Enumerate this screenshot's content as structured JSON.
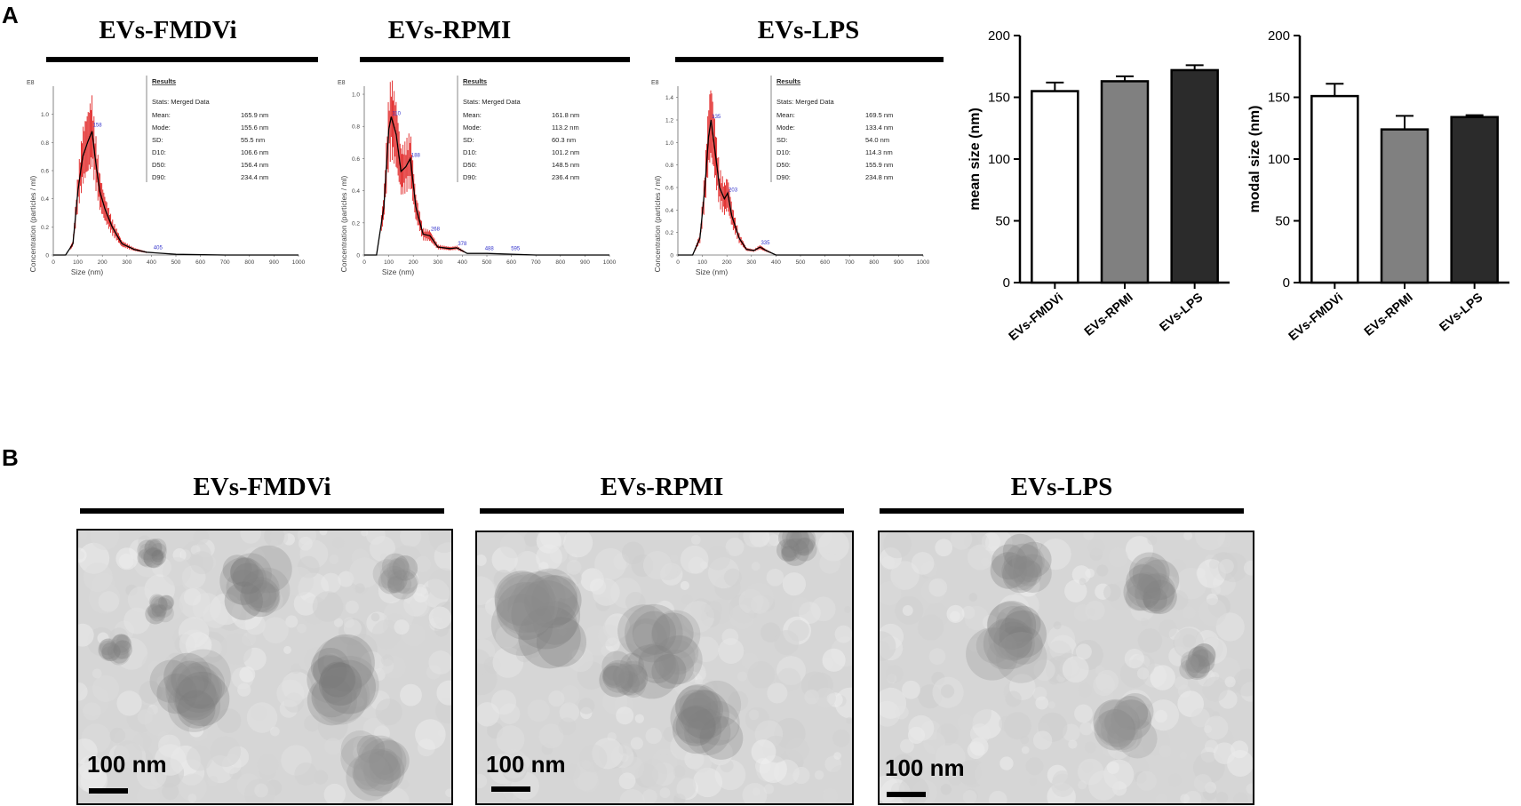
{
  "panel_a": {
    "label": "A",
    "groups": [
      {
        "title": "EVs-FMDVi"
      },
      {
        "title": "EVs-RPMI"
      },
      {
        "title": "EVs-LPS"
      }
    ]
  },
  "panel_b": {
    "label": "B",
    "groups": [
      {
        "title": "EVs-FMDVi",
        "scale": "100 nm"
      },
      {
        "title": "EVs-RPMI",
        "scale": "100 nm"
      },
      {
        "title": "EVs-LPS",
        "scale": "100 nm"
      }
    ]
  },
  "chart_data": [
    {
      "type": "line",
      "title": "EVs-FMDVi",
      "xlabel": "Size (nm)",
      "ylabel": "Concentration (particles / ml)",
      "y_exponent_label": "E8",
      "xlim": [
        0,
        1000
      ],
      "ylim": [
        0,
        1.2
      ],
      "x_ticks": [
        "0",
        "100",
        "200",
        "300",
        "400",
        "500",
        "600",
        "700",
        "800",
        "900",
        "1000"
      ],
      "y_ticks": [
        "0",
        "0.2",
        "0.4",
        "0.6",
        "0.8",
        "1.0"
      ],
      "peak_labels": [
        {
          "x": 158,
          "y": 0.9,
          "text": "158"
        },
        {
          "x": 405,
          "y": 0.03,
          "text": "405"
        }
      ],
      "x": [
        0,
        50,
        80,
        100,
        120,
        140,
        158,
        170,
        190,
        210,
        240,
        280,
        330,
        380,
        420,
        500,
        700,
        1000
      ],
      "y": [
        0,
        0.0,
        0.08,
        0.45,
        0.7,
        0.8,
        0.88,
        0.7,
        0.45,
        0.33,
        0.2,
        0.08,
        0.04,
        0.02,
        0.015,
        0.005,
        0.0,
        0.0
      ],
      "results": {
        "header": "Results",
        "stats": "Stats: Merged Data",
        "rows": [
          {
            "k": "Mean:",
            "v": "165.9 nm"
          },
          {
            "k": "Mode:",
            "v": "155.6 nm"
          },
          {
            "k": "SD:",
            "v": "55.5 nm"
          },
          {
            "k": "D10:",
            "v": "106.6 nm"
          },
          {
            "k": "D50:",
            "v": "156.4 nm"
          },
          {
            "k": "D90:",
            "v": "234.4 nm"
          }
        ]
      },
      "colors": {
        "mean_line": "#000000",
        "error": "#e02020",
        "label": "#3333cc"
      }
    },
    {
      "type": "line",
      "title": "EVs-RPMI",
      "xlabel": "Size (nm)",
      "ylabel": "Concentration (particles / ml)",
      "y_exponent_label": "E8",
      "xlim": [
        0,
        1000
      ],
      "ylim": [
        0,
        1.05
      ],
      "x_ticks": [
        "0",
        "100",
        "200",
        "300",
        "400",
        "500",
        "600",
        "700",
        "800",
        "900",
        "1000"
      ],
      "y_ticks": [
        "0",
        "0.2",
        "0.4",
        "0.6",
        "0.8",
        "1.0"
      ],
      "peak_labels": [
        {
          "x": 110,
          "y": 0.86,
          "text": "110"
        },
        {
          "x": 188,
          "y": 0.6,
          "text": "188"
        },
        {
          "x": 268,
          "y": 0.14,
          "text": "268"
        },
        {
          "x": 378,
          "y": 0.05,
          "text": "378"
        },
        {
          "x": 488,
          "y": 0.02,
          "text": "488"
        },
        {
          "x": 595,
          "y": 0.02,
          "text": "595"
        }
      ],
      "x": [
        0,
        50,
        80,
        100,
        110,
        130,
        150,
        170,
        188,
        210,
        240,
        268,
        300,
        350,
        378,
        420,
        500,
        700,
        1000
      ],
      "y": [
        0,
        0.0,
        0.3,
        0.78,
        0.86,
        0.75,
        0.52,
        0.55,
        0.6,
        0.3,
        0.13,
        0.12,
        0.05,
        0.04,
        0.045,
        0.01,
        0.01,
        0.0,
        0.0
      ],
      "results": {
        "header": "Results",
        "stats": "Stats: Merged Data",
        "rows": [
          {
            "k": "Mean:",
            "v": "161.8 nm"
          },
          {
            "k": "Mode:",
            "v": "113.2 nm"
          },
          {
            "k": "SD:",
            "v": "60.3 nm"
          },
          {
            "k": "D10:",
            "v": "101.2 nm"
          },
          {
            "k": "D50:",
            "v": "148.5 nm"
          },
          {
            "k": "D90:",
            "v": "236.4 nm"
          }
        ]
      },
      "colors": {
        "mean_line": "#000000",
        "error": "#e02020",
        "label": "#3333cc"
      }
    },
    {
      "type": "line",
      "title": "EVs-LPS",
      "xlabel": "Size (nm)",
      "ylabel": "Concentration (particles / ml)",
      "y_exponent_label": "E8",
      "xlim": [
        0,
        1000
      ],
      "ylim": [
        0,
        1.5
      ],
      "x_ticks": [
        "0",
        "100",
        "200",
        "300",
        "400",
        "500",
        "600",
        "700",
        "800",
        "900",
        "1000"
      ],
      "y_ticks": [
        "0",
        "0.2",
        "0.4",
        "0.6",
        "0.8",
        "1.0",
        "1.2",
        "1.4"
      ],
      "peak_labels": [
        {
          "x": 135,
          "y": 1.2,
          "text": "135"
        },
        {
          "x": 203,
          "y": 0.55,
          "text": "203"
        },
        {
          "x": 335,
          "y": 0.08,
          "text": "335"
        }
      ],
      "x": [
        0,
        60,
        90,
        110,
        125,
        135,
        150,
        170,
        190,
        203,
        220,
        250,
        280,
        310,
        335,
        360,
        400,
        500,
        1000
      ],
      "y": [
        0,
        0.0,
        0.15,
        0.6,
        1.05,
        1.2,
        0.95,
        0.6,
        0.5,
        0.55,
        0.35,
        0.15,
        0.05,
        0.04,
        0.07,
        0.04,
        0.0,
        0.0,
        0.0
      ],
      "results": {
        "header": "Results",
        "stats": "Stats: Merged Data",
        "rows": [
          {
            "k": "Mean:",
            "v": "169.5 nm"
          },
          {
            "k": "Mode:",
            "v": "133.4 nm"
          },
          {
            "k": "SD:",
            "v": "54.0 nm"
          },
          {
            "k": "D10:",
            "v": "114.3 nm"
          },
          {
            "k": "D50:",
            "v": "155.9 nm"
          },
          {
            "k": "D90:",
            "v": "234.8 nm"
          }
        ]
      },
      "colors": {
        "mean_line": "#000000",
        "error": "#e02020",
        "label": "#3333cc"
      }
    },
    {
      "type": "bar",
      "ylabel": "mean size (nm)",
      "ylim": [
        0,
        200
      ],
      "y_ticks": [
        "0",
        "50",
        "100",
        "150",
        "200"
      ],
      "categories": [
        "EVs-FMDVi",
        "EVs-RPMI",
        "EVs-LPS"
      ],
      "values": [
        155,
        163,
        172
      ],
      "errors": [
        7,
        4,
        4
      ],
      "colors": [
        "#ffffff",
        "#808080",
        "#2b2b2b"
      ]
    },
    {
      "type": "bar",
      "ylabel": "modal size (nm)",
      "ylim": [
        0,
        200
      ],
      "y_ticks": [
        "0",
        "50",
        "100",
        "150",
        "200"
      ],
      "categories": [
        "EVs-FMDVi",
        "EVs-RPMI",
        "EVs-LPS"
      ],
      "values": [
        151,
        124,
        134
      ],
      "errors": [
        10,
        11,
        1.5
      ],
      "colors": [
        "#ffffff",
        "#808080",
        "#2b2b2b"
      ]
    }
  ]
}
